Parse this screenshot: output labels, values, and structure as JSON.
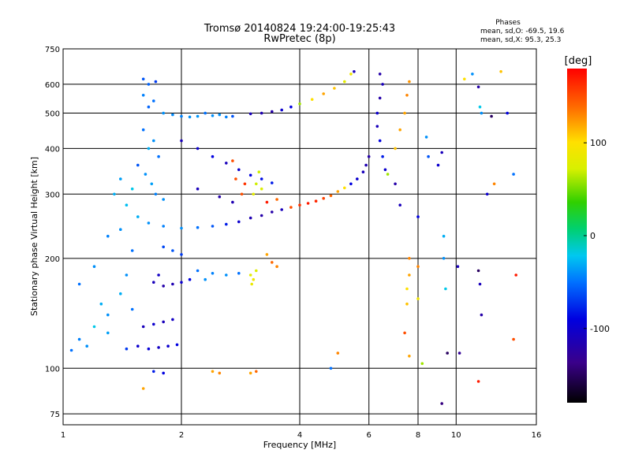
{
  "chart_data": {
    "type": "scatter",
    "title": "Tromsø 20140824 19:24:00-19:25:43",
    "subtitle": "RwPretec (8p)",
    "xlabel": "Frequency [MHz]",
    "ylabel": "Stationary phase Virtual Height [km]",
    "x_scale": "log2",
    "y_scale": "log",
    "xlim": [
      1,
      16
    ],
    "ylim": [
      70,
      750
    ],
    "x_ticks": [
      1,
      2,
      4,
      6,
      8,
      10,
      16
    ],
    "y_ticks": [
      75,
      100,
      200,
      300,
      400,
      500,
      600,
      750
    ],
    "x_tick_labels": [
      "1",
      "2",
      "4",
      "6",
      "8",
      "10",
      "16"
    ],
    "y_tick_labels": [
      "75",
      "100",
      "200",
      "300",
      "400",
      "500",
      "600",
      "750"
    ],
    "grid": true,
    "stats": {
      "header": "Phases",
      "line_o": "mean, sd,O: -69.5, 19.6",
      "line_x": "mean, sd,X: 95.3, 25.3"
    },
    "colorbar": {
      "label": "[deg]",
      "range": [
        -180,
        180
      ],
      "ticks": [
        100,
        0,
        -100
      ],
      "tick_labels": [
        "100",
        "0",
        "-100"
      ]
    },
    "series": [
      {
        "points": [
          [
            1.6,
            620,
            -60
          ],
          [
            1.65,
            600,
            -55
          ],
          [
            1.72,
            610,
            -70
          ],
          [
            1.6,
            560,
            -45
          ],
          [
            1.7,
            540,
            -50
          ],
          [
            1.65,
            520,
            -55
          ],
          [
            1.8,
            500,
            -40
          ],
          [
            1.9,
            495,
            -42
          ],
          [
            2.0,
            490,
            -45
          ],
          [
            2.1,
            488,
            -40
          ],
          [
            2.2,
            490,
            -38
          ],
          [
            2.4,
            492,
            -40
          ],
          [
            2.6,
            488,
            -45
          ],
          [
            2.3,
            500,
            -50
          ],
          [
            2.5,
            495,
            -40
          ],
          [
            2.7,
            490,
            -60
          ],
          [
            3.0,
            498,
            -110
          ],
          [
            3.2,
            500,
            -115
          ],
          [
            3.4,
            505,
            -120
          ],
          [
            3.6,
            510,
            -100
          ],
          [
            3.8,
            520,
            -90
          ],
          [
            4.0,
            530,
            60
          ],
          [
            4.3,
            545,
            100
          ],
          [
            4.6,
            565,
            120
          ],
          [
            4.9,
            585,
            110
          ],
          [
            5.2,
            610,
            80
          ],
          [
            5.4,
            640,
            90
          ],
          [
            5.5,
            650,
            -110
          ],
          [
            6.4,
            640,
            -120
          ],
          [
            6.5,
            600,
            -110
          ],
          [
            6.4,
            550,
            -120
          ],
          [
            6.3,
            500,
            -100
          ],
          [
            6.3,
            460,
            -110
          ],
          [
            6.4,
            420,
            -90
          ],
          [
            6.5,
            380,
            -80
          ],
          [
            6.6,
            350,
            -100
          ],
          [
            6.7,
            340,
            60
          ],
          [
            7.0,
            400,
            110
          ],
          [
            7.2,
            450,
            120
          ],
          [
            7.4,
            500,
            120
          ],
          [
            7.5,
            560,
            130
          ],
          [
            7.6,
            610,
            125
          ],
          [
            1.6,
            450,
            -50
          ],
          [
            1.7,
            420,
            -40
          ],
          [
            1.65,
            400,
            -30
          ],
          [
            1.75,
            380,
            -50
          ],
          [
            1.55,
            360,
            -60
          ],
          [
            1.62,
            340,
            -40
          ],
          [
            1.68,
            320,
            -35
          ],
          [
            1.72,
            300,
            -45
          ],
          [
            1.8,
            290,
            -40
          ],
          [
            1.5,
            310,
            -20
          ],
          [
            1.4,
            330,
            -35
          ],
          [
            1.35,
            300,
            -30
          ],
          [
            1.45,
            280,
            -25
          ],
          [
            1.55,
            260,
            -30
          ],
          [
            1.65,
            250,
            -40
          ],
          [
            1.8,
            245,
            -45
          ],
          [
            2.0,
            242,
            -40
          ],
          [
            2.2,
            243,
            -50
          ],
          [
            2.4,
            245,
            -60
          ],
          [
            2.6,
            248,
            -80
          ],
          [
            2.8,
            252,
            -100
          ],
          [
            3.0,
            258,
            -115
          ],
          [
            3.2,
            262,
            -120
          ],
          [
            3.4,
            268,
            -120
          ],
          [
            3.6,
            272,
            -110
          ],
          [
            3.8,
            276,
            150
          ],
          [
            4.0,
            280,
            160
          ],
          [
            4.2,
            283,
            170
          ],
          [
            4.4,
            287,
            165
          ],
          [
            4.6,
            292,
            155
          ],
          [
            4.8,
            297,
            140
          ],
          [
            5.0,
            305,
            120
          ],
          [
            5.2,
            312,
            100
          ],
          [
            5.4,
            320,
            -90
          ],
          [
            5.6,
            330,
            -100
          ],
          [
            5.8,
            345,
            -110
          ],
          [
            5.9,
            360,
            -115
          ],
          [
            6.0,
            380,
            -120
          ],
          [
            2.0,
            420,
            -110
          ],
          [
            2.2,
            400,
            -100
          ],
          [
            2.4,
            380,
            -90
          ],
          [
            2.6,
            365,
            -110
          ],
          [
            2.8,
            350,
            -100
          ],
          [
            3.0,
            338,
            -90
          ],
          [
            3.2,
            330,
            -85
          ],
          [
            3.4,
            322,
            -80
          ],
          [
            2.2,
            310,
            -110
          ],
          [
            2.5,
            295,
            -120
          ],
          [
            2.7,
            285,
            -115
          ],
          [
            3.1,
            320,
            70
          ],
          [
            3.15,
            345,
            70
          ],
          [
            3.05,
            300,
            80
          ],
          [
            3.2,
            310,
            75
          ],
          [
            2.75,
            330,
            150
          ],
          [
            2.85,
            300,
            150
          ],
          [
            2.7,
            370,
            150
          ],
          [
            2.9,
            320,
            160
          ],
          [
            3.3,
            285,
            170
          ],
          [
            3.5,
            290,
            140
          ],
          [
            1.1,
            170,
            -50
          ],
          [
            1.2,
            190,
            -40
          ],
          [
            1.25,
            150,
            -30
          ],
          [
            1.3,
            140,
            -40
          ],
          [
            1.2,
            130,
            -20
          ],
          [
            1.1,
            120,
            -45
          ],
          [
            1.05,
            112,
            -50
          ],
          [
            1.15,
            115,
            -40
          ],
          [
            1.3,
            125,
            -35
          ],
          [
            1.4,
            160,
            -30
          ],
          [
            1.45,
            180,
            -40
          ],
          [
            1.5,
            210,
            -50
          ],
          [
            1.3,
            230,
            -45
          ],
          [
            1.4,
            240,
            -40
          ],
          [
            1.5,
            145,
            -50
          ],
          [
            1.7,
            172,
            -110
          ],
          [
            1.8,
            168,
            -120
          ],
          [
            1.9,
            170,
            -115
          ],
          [
            2.0,
            172,
            -100
          ],
          [
            2.1,
            175,
            -90
          ],
          [
            1.75,
            180,
            -105
          ],
          [
            2.2,
            185,
            -50
          ],
          [
            2.4,
            182,
            -45
          ],
          [
            2.6,
            180,
            -40
          ],
          [
            2.8,
            182,
            -50
          ],
          [
            2.3,
            175,
            -40
          ],
          [
            1.6,
            130,
            -110
          ],
          [
            1.7,
            132,
            -100
          ],
          [
            1.8,
            134,
            -110
          ],
          [
            1.9,
            136,
            -105
          ],
          [
            1.55,
            115,
            -100
          ],
          [
            1.65,
            113,
            -95
          ],
          [
            1.75,
            114,
            -105
          ],
          [
            1.85,
            115,
            -100
          ],
          [
            1.95,
            116,
            -90
          ],
          [
            1.45,
            113,
            -70
          ],
          [
            3.0,
            180,
            80
          ],
          [
            3.05,
            175,
            90
          ],
          [
            3.1,
            185,
            75
          ],
          [
            3.02,
            170,
            85
          ],
          [
            3.4,
            195,
            140
          ],
          [
            3.5,
            190,
            130
          ],
          [
            3.3,
            205,
            120
          ],
          [
            1.7,
            98,
            -80
          ],
          [
            1.8,
            97,
            -90
          ],
          [
            2.4,
            98,
            120
          ],
          [
            2.5,
            97,
            130
          ],
          [
            3.0,
            97,
            120
          ],
          [
            3.1,
            98,
            140
          ],
          [
            1.6,
            88,
            120
          ],
          [
            1.9,
            210,
            -60
          ],
          [
            2.0,
            205,
            -70
          ],
          [
            1.8,
            215,
            -65
          ],
          [
            4.8,
            100,
            -50
          ],
          [
            5.0,
            110,
            130
          ],
          [
            7.6,
            200,
            130
          ],
          [
            7.6,
            180,
            120
          ],
          [
            7.5,
            165,
            100
          ],
          [
            7.5,
            150,
            110
          ],
          [
            7.4,
            125,
            150
          ],
          [
            7.6,
            108,
            120
          ],
          [
            8.0,
            190,
            130
          ],
          [
            8.2,
            103,
            60
          ],
          [
            8.0,
            155,
            90
          ],
          [
            9.2,
            390,
            -110
          ],
          [
            9.3,
            230,
            -30
          ],
          [
            9.3,
            200,
            -40
          ],
          [
            9.4,
            165,
            -20
          ],
          [
            9.5,
            110,
            -150
          ],
          [
            9.2,
            80,
            -140
          ],
          [
            10.1,
            190,
            -110
          ],
          [
            10.2,
            110,
            -130
          ],
          [
            10.5,
            620,
            100
          ],
          [
            11.0,
            640,
            -40
          ],
          [
            11.4,
            590,
            -120
          ],
          [
            11.5,
            520,
            -20
          ],
          [
            11.6,
            500,
            -40
          ],
          [
            12.3,
            490,
            -150
          ],
          [
            11.4,
            185,
            -150
          ],
          [
            11.5,
            170,
            -110
          ],
          [
            11.6,
            140,
            -120
          ],
          [
            11.4,
            92,
            170
          ],
          [
            13.0,
            650,
            110
          ],
          [
            13.5,
            500,
            -90
          ],
          [
            14.0,
            340,
            -50
          ],
          [
            14.2,
            180,
            170
          ],
          [
            14.0,
            120,
            150
          ],
          [
            12.0,
            300,
            -100
          ],
          [
            12.5,
            320,
            130
          ],
          [
            8.4,
            430,
            -40
          ],
          [
            8.5,
            380,
            -60
          ],
          [
            9.0,
            360,
            -100
          ],
          [
            8.0,
            260,
            -90
          ],
          [
            7.0,
            320,
            -120
          ],
          [
            7.2,
            280,
            -110
          ]
        ]
      }
    ]
  }
}
